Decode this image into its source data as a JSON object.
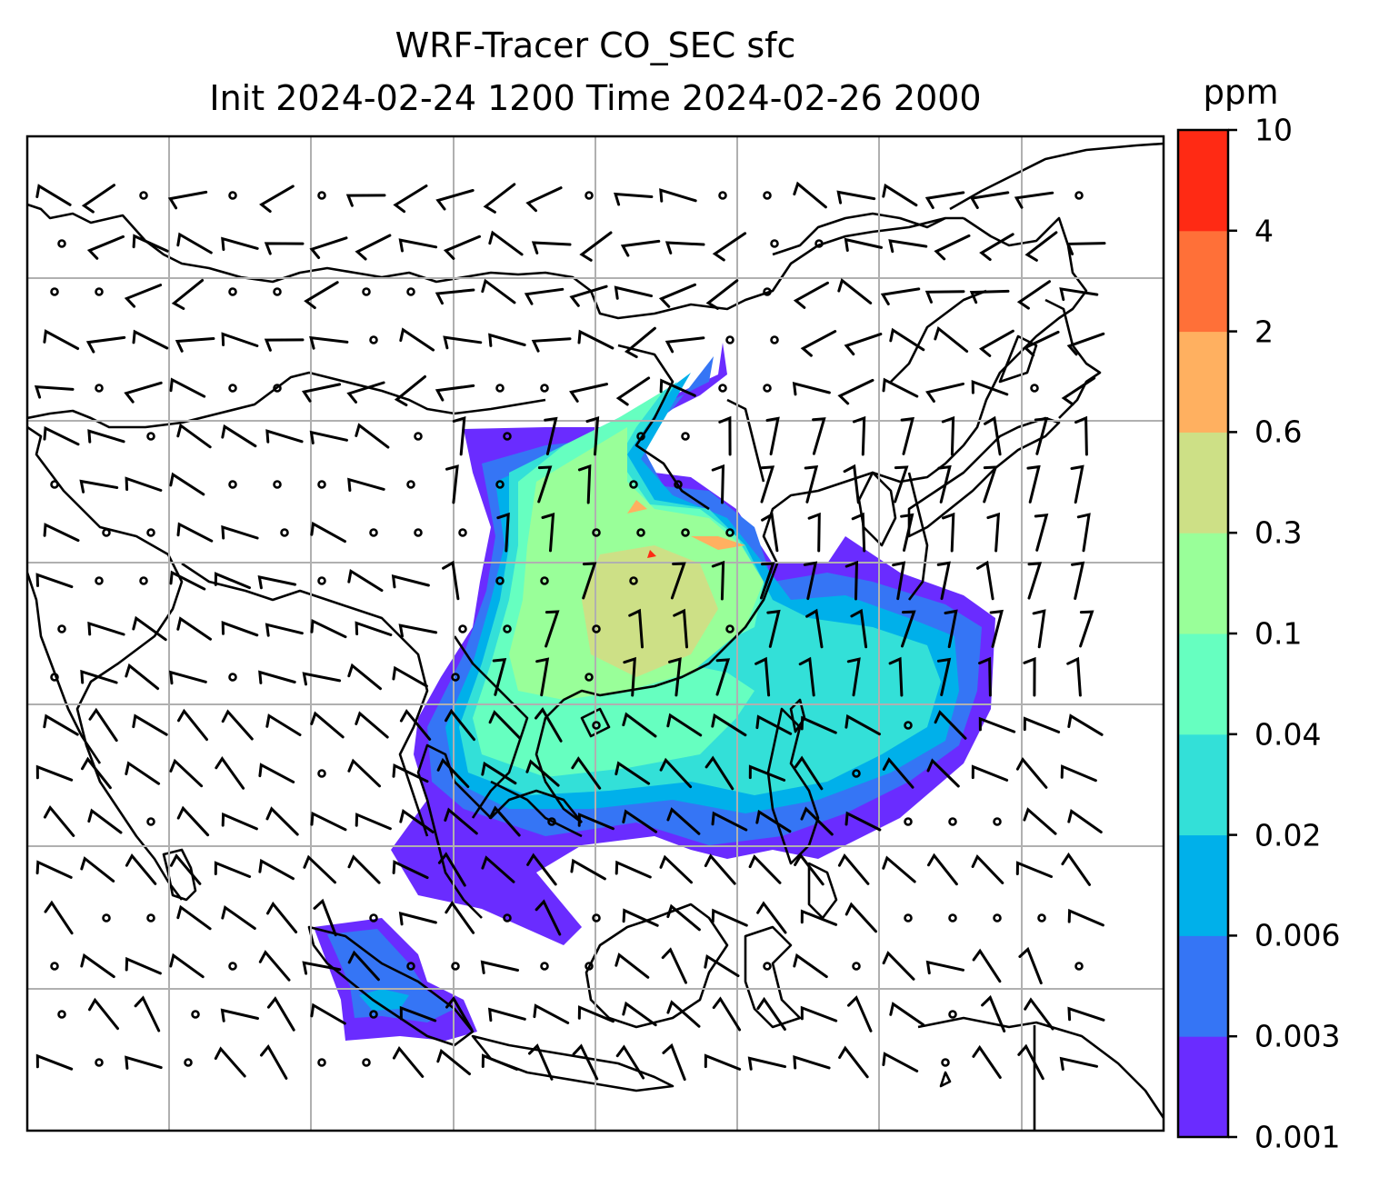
{
  "title": {
    "line1": "WRF-Tracer CO_SEC sfc",
    "line2": "Init 2024-02-24 1200 Time 2024-02-26 2000"
  },
  "colorbar": {
    "unit": "ppm",
    "levels": [
      "0.001",
      "0.003",
      "0.006",
      "0.02",
      "0.04",
      "0.1",
      "0.3",
      "0.6",
      "2",
      "4",
      "10"
    ],
    "colors": [
      "#6a2cff",
      "#3575f5",
      "#00b0ea",
      "#33e0d8",
      "#66ffc0",
      "#99ff99",
      "#cde086",
      "#ffb060",
      "#ff7038",
      "#ff2a14"
    ]
  },
  "map": {
    "variable": "CO_SEC tracer concentration",
    "overlay": "wind barbs",
    "coastline_color": "#000000",
    "gridline_color": "#b0b0b0"
  }
}
